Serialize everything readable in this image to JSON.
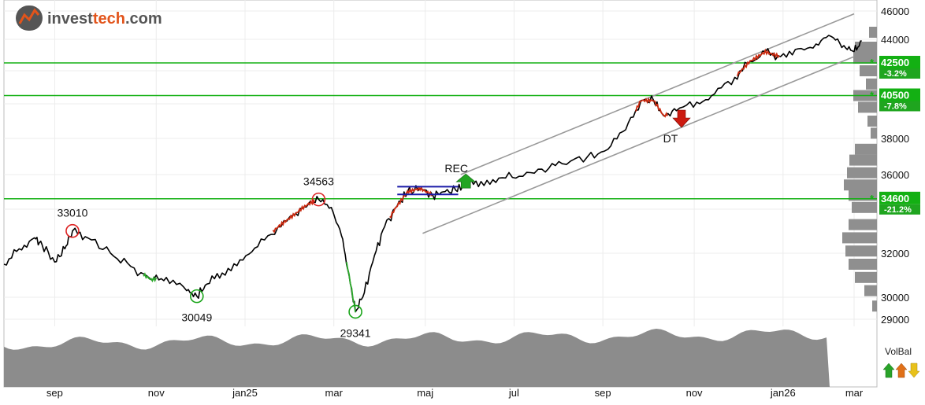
{
  "brand": {
    "name_prefix": "invest",
    "name_accent": "tech",
    "name_suffix": ".com",
    "accent_color": "#e2541b",
    "logo": "investtech-logo-icon"
  },
  "chart_data": {
    "type": "line",
    "x": [
      "sep",
      "nov",
      "jan25",
      "mar",
      "maj",
      "jul",
      "sep",
      "nov",
      "jan26",
      "mar"
    ],
    "ylim": [
      29000,
      46000
    ],
    "yticks": [
      "46000",
      "44000",
      "42000",
      "40000",
      "38000",
      "36000",
      "34000",
      "32000",
      "30000",
      "29000"
    ],
    "grid": true,
    "price_series": {
      "name": "",
      "color": "#000000",
      "values": [
        [
          0.0,
          31500
        ],
        [
          0.6,
          32200
        ],
        [
          1.2,
          32700
        ],
        [
          1.5,
          32400
        ],
        [
          2.0,
          31600
        ],
        [
          2.4,
          32200
        ],
        [
          2.7,
          33010
        ],
        [
          3.3,
          32700
        ],
        [
          4.2,
          32000
        ],
        [
          5.0,
          31400
        ],
        [
          5.8,
          30800
        ],
        [
          6.4,
          30900
        ],
        [
          7.2,
          30300
        ],
        [
          7.6,
          30049
        ],
        [
          8.0,
          30600
        ],
        [
          8.6,
          31100
        ],
        [
          9.3,
          31700
        ],
        [
          10.0,
          32300
        ],
        [
          10.8,
          33200
        ],
        [
          11.5,
          33800
        ],
        [
          12.0,
          34300
        ],
        [
          12.4,
          34563
        ],
        [
          12.9,
          34100
        ],
        [
          13.3,
          32800
        ],
        [
          13.6,
          31000
        ],
        [
          13.85,
          29341
        ],
        [
          14.2,
          30200
        ],
        [
          14.6,
          31900
        ],
        [
          15.0,
          33200
        ],
        [
          15.5,
          34200
        ],
        [
          15.9,
          35000
        ],
        [
          16.4,
          35200
        ],
        [
          16.9,
          34800
        ],
        [
          17.3,
          35000
        ],
        [
          17.8,
          35100
        ],
        [
          18.2,
          35400
        ],
        [
          18.8,
          35600
        ],
        [
          19.5,
          35800
        ],
        [
          20.3,
          35900
        ],
        [
          21.2,
          36300
        ],
        [
          22.0,
          36600
        ],
        [
          23.0,
          37000
        ],
        [
          23.8,
          37400
        ],
        [
          24.5,
          38500
        ],
        [
          25.1,
          40200
        ],
        [
          25.6,
          40200
        ],
        [
          26.0,
          39300
        ],
        [
          26.5,
          39600
        ],
        [
          27.3,
          40100
        ],
        [
          28.0,
          40600
        ],
        [
          28.8,
          41600
        ],
        [
          29.4,
          42600
        ],
        [
          30.0,
          43200
        ],
        [
          30.6,
          42900
        ],
        [
          31.3,
          43400
        ],
        [
          32.0,
          43700
        ],
        [
          32.6,
          44200
        ],
        [
          33.1,
          43600
        ],
        [
          33.5,
          43200
        ],
        [
          33.8,
          43900
        ]
      ]
    },
    "trend_channel": {
      "color": "#999999",
      "upper": [
        [
          18.0,
          36000
        ],
        [
          33.5,
          45800
        ]
      ],
      "lower": [
        [
          16.5,
          32900
        ],
        [
          33.5,
          42900
        ]
      ]
    },
    "horizontal_lines": [
      {
        "value": 42500,
        "label": "42500",
        "pct": "-3.2%",
        "color": "#13b013"
      },
      {
        "value": 40500,
        "label": "40500",
        "pct": "-7.8%",
        "color": "#13b013"
      },
      {
        "value": 34600,
        "label": "34600",
        "pct": "-21.2%",
        "color": "#13b013"
      }
    ],
    "annotations": [
      {
        "text": "33010",
        "x": 2.7,
        "y": 33010,
        "type": "top"
      },
      {
        "text": "30049",
        "x": 7.6,
        "y": 30049,
        "type": "bottom"
      },
      {
        "text": "34563",
        "x": 12.4,
        "y": 34563,
        "type": "top"
      },
      {
        "text": "29341",
        "x": 13.85,
        "y": 29341,
        "type": "bottom"
      },
      {
        "text": "REC",
        "x": 18.2,
        "y": 35400,
        "type": "signal-buy"
      },
      {
        "text": "DT",
        "x": 26.7,
        "y": 39000,
        "type": "signal-sell"
      }
    ],
    "volume_balance": {
      "label": "VolBal",
      "icons": [
        "arrow-up-green-icon",
        "arrow-up-orange-icon",
        "arrow-down-yellow-icon"
      ]
    }
  }
}
